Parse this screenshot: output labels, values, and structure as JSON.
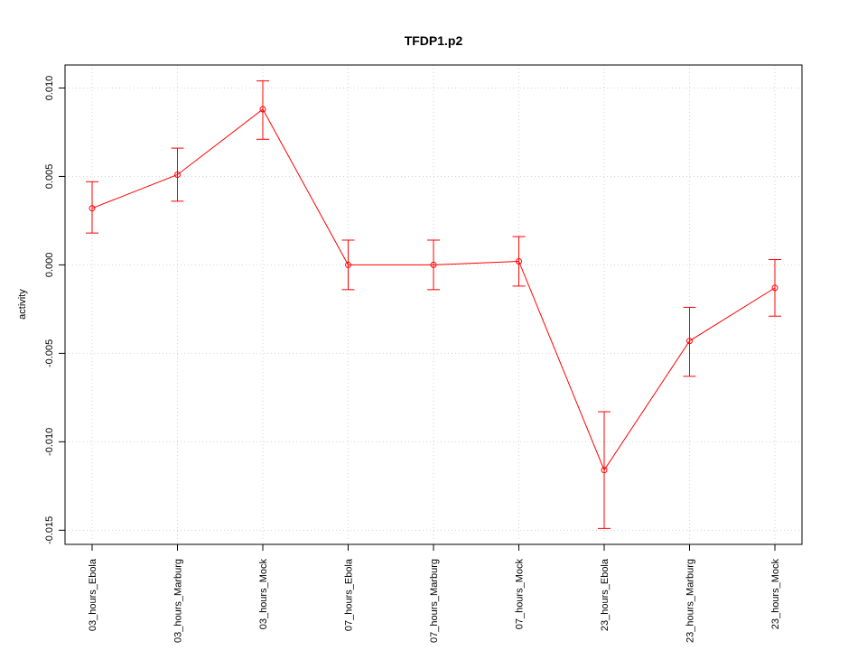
{
  "chart_data": {
    "type": "line",
    "title": "TFDP1.p2",
    "xlabel": "",
    "ylabel": "activity",
    "categories": [
      "03_hours_Ebola",
      "03_hours_Marburg",
      "03_hours_Mock",
      "07_hours_Ebola",
      "07_hours_Marburg",
      "07_hours_Mock",
      "23_hours_Ebola",
      "23_hours_Marburg",
      "23_hours_Mock"
    ],
    "series": [
      {
        "values": [
          0.0032,
          0.0051,
          0.0088,
          0.0,
          0.0,
          0.0002,
          -0.0116,
          -0.0043,
          -0.0013
        ],
        "err_low": [
          0.0018,
          0.0036,
          0.0071,
          -0.0014,
          -0.0014,
          -0.0012,
          -0.0149,
          -0.0063,
          -0.0029
        ],
        "err_high": [
          0.0047,
          0.0066,
          0.0104,
          0.0014,
          0.0014,
          0.0016,
          -0.0083,
          -0.0024,
          0.0003
        ]
      }
    ],
    "yticks": [
      0.01,
      0.005,
      0.0,
      -0.005,
      -0.01,
      -0.015
    ],
    "ytick_labels": [
      "0.010",
      "0.005",
      "0.000",
      "-0.005",
      "-0.010",
      "-0.015"
    ],
    "ylim": [
      -0.0158,
      0.0113
    ],
    "grid": true,
    "colors": {
      "series": "#ff0000",
      "grid": "#d3d3d3",
      "axis": "#000000"
    }
  }
}
